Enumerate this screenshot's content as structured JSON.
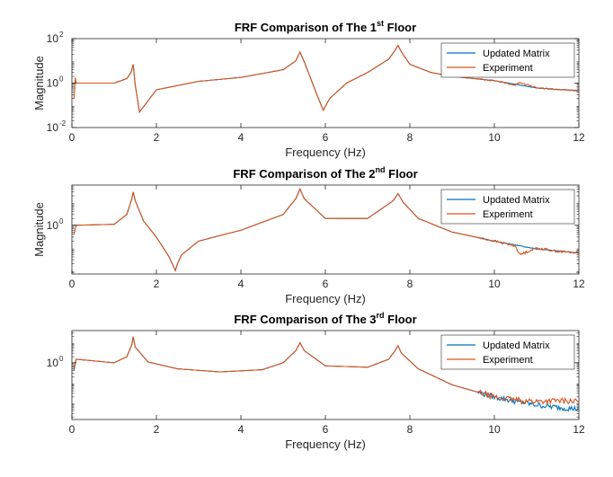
{
  "colors": {
    "updated": "#0072BD",
    "experiment": "#D95319",
    "axis": "#262626"
  },
  "chart_data": [
    {
      "type": "line",
      "title": "FRF Comparison of The 1",
      "title_sup": "st",
      "title_suffix": " Floor",
      "xlabel": "Frequency (Hz)",
      "ylabel": "Magnitude",
      "xlim": [
        0,
        12
      ],
      "ylim": [
        0.01,
        100
      ],
      "yscale": "log",
      "xticks": [
        "0",
        "2",
        "4",
        "6",
        "8",
        "10",
        "12"
      ],
      "yticks": [
        {
          "base": "10",
          "exp": "2",
          "value": 100
        },
        {
          "base": "10",
          "exp": "0",
          "value": 1
        },
        {
          "base": "10",
          "exp": "-2",
          "value": 0.01
        }
      ],
      "legend": {
        "location": "top-right",
        "entries": [
          "Updated Matrix",
          "Experiment"
        ]
      },
      "series": [
        {
          "name": "Updated Matrix",
          "x": [
            0.05,
            1,
            1.3,
            1.4,
            1.45,
            1.5,
            1.6,
            2,
            3,
            4,
            5,
            5.3,
            5.4,
            5.5,
            5.8,
            5.95,
            6.1,
            6.5,
            7,
            7.5,
            7.65,
            7.72,
            7.8,
            8,
            8.5,
            9,
            10,
            11,
            12
          ],
          "y": [
            1,
            1,
            1.6,
            3,
            7,
            0.8,
            0.05,
            0.5,
            1.2,
            1.8,
            4,
            10,
            25,
            9,
            0.3,
            0.06,
            0.2,
            1,
            3,
            12,
            30,
            50,
            25,
            7,
            3,
            2,
            1.3,
            0.6,
            0.45
          ]
        },
        {
          "name": "Experiment",
          "x": [
            0.05,
            0.08,
            0.1,
            1,
            1.3,
            1.4,
            1.45,
            1.5,
            1.6,
            2,
            3,
            4,
            5,
            5.3,
            5.4,
            5.5,
            5.8,
            5.95,
            6.1,
            6.5,
            7,
            7.5,
            7.65,
            7.72,
            7.8,
            8,
            8.5,
            9,
            10,
            10.5,
            10.6,
            11,
            12
          ],
          "y": [
            0.2,
            1.8,
            1,
            1,
            1.6,
            3,
            7,
            0.8,
            0.05,
            0.5,
            1.2,
            1.8,
            4,
            10,
            25,
            9,
            0.3,
            0.06,
            0.2,
            1,
            3,
            12,
            30,
            50,
            25,
            7,
            3,
            2,
            1.3,
            0.8,
            1.1,
            0.6,
            0.45
          ]
        }
      ]
    },
    {
      "type": "line",
      "title": "FRF Comparison of The 2",
      "title_sup": "nd",
      "title_suffix": " Floor",
      "xlabel": "Frequency (Hz)",
      "ylabel": "Magnitude",
      "xlim": [
        0,
        12
      ],
      "ylim": [
        0.007,
        60
      ],
      "yscale": "log",
      "xticks": [
        "0",
        "2",
        "4",
        "6",
        "8",
        "10",
        "12"
      ],
      "yticks": [
        {
          "base": "10",
          "exp": "0",
          "value": 1
        }
      ],
      "legend": {
        "location": "top-right",
        "entries": [
          "Updated Matrix",
          "Experiment"
        ]
      },
      "series": [
        {
          "name": "Updated Matrix",
          "x": [
            0.05,
            1,
            1.3,
            1.42,
            1.45,
            1.5,
            1.7,
            2,
            2.3,
            2.45,
            2.5,
            2.6,
            3,
            4,
            5,
            5.3,
            5.4,
            5.5,
            6,
            7,
            7.6,
            7.72,
            7.85,
            8.2,
            9,
            10,
            11,
            12
          ],
          "y": [
            1,
            1.1,
            3,
            15,
            30,
            12,
            1.5,
            0.3,
            0.04,
            0.01,
            0.02,
            0.05,
            0.2,
            0.6,
            3,
            15,
            40,
            15,
            2,
            2,
            12,
            25,
            10,
            2,
            0.5,
            0.2,
            0.09,
            0.06
          ]
        },
        {
          "name": "Experiment",
          "x": [
            0.05,
            0.1,
            1,
            1.3,
            1.42,
            1.45,
            1.5,
            1.7,
            2,
            2.3,
            2.45,
            2.5,
            2.6,
            3,
            4,
            5,
            5.3,
            5.4,
            5.5,
            6,
            7,
            7.6,
            7.72,
            7.85,
            8.2,
            9,
            10,
            10.5,
            10.6,
            11,
            11.5,
            12
          ],
          "y": [
            0.4,
            1,
            1.1,
            3,
            15,
            30,
            12,
            1.5,
            0.3,
            0.04,
            0.01,
            0.02,
            0.05,
            0.2,
            0.6,
            3,
            15,
            40,
            15,
            2,
            2,
            12,
            25,
            10,
            2,
            0.5,
            0.2,
            0.12,
            0.05,
            0.1,
            0.07,
            0.06
          ]
        }
      ]
    },
    {
      "type": "line",
      "title": "FRF Comparison of The 3",
      "title_sup": "rd",
      "title_suffix": " Floor",
      "xlabel": "Frequency (Hz)",
      "ylabel": "",
      "xlim": [
        0,
        12
      ],
      "ylim": [
        0.0015,
        40
      ],
      "yscale": "log",
      "xticks": [
        "0",
        "2",
        "4",
        "6",
        "8",
        "10",
        "12"
      ],
      "yticks": [
        {
          "base": "10",
          "exp": "0",
          "value": 1
        }
      ],
      "legend": {
        "location": "top-right",
        "entries": [
          "Updated Matrix",
          "Experiment"
        ]
      },
      "series": [
        {
          "name": "Updated Matrix",
          "x": [
            0.05,
            0.1,
            1,
            1.3,
            1.42,
            1.45,
            1.5,
            1.8,
            2.5,
            3.5,
            4.5,
            5,
            5.3,
            5.4,
            5.5,
            6,
            7,
            7.5,
            7.65,
            7.72,
            7.8,
            8.2,
            9,
            10,
            10.5,
            11,
            11.5,
            12
          ],
          "y": [
            0.4,
            1.5,
            1,
            2,
            8,
            20,
            6,
            1.1,
            0.5,
            0.35,
            0.45,
            1,
            4,
            10,
            4,
            0.7,
            0.6,
            1.5,
            4,
            7,
            3,
            0.5,
            0.08,
            0.02,
            0.012,
            0.008,
            0.006,
            0.005
          ]
        },
        {
          "name": "Experiment",
          "x": [
            0.05,
            0.1,
            1,
            1.3,
            1.42,
            1.45,
            1.5,
            1.8,
            2.5,
            3.5,
            4.5,
            5,
            5.3,
            5.4,
            5.5,
            6,
            7,
            7.5,
            7.65,
            7.72,
            7.8,
            8.2,
            9,
            10,
            10.5,
            11,
            11.5,
            12
          ],
          "y": [
            0.5,
            1.5,
            1,
            2,
            8,
            20,
            6,
            1.1,
            0.5,
            0.35,
            0.45,
            1,
            4,
            10,
            4,
            0.7,
            0.6,
            1.5,
            4,
            7,
            3,
            0.5,
            0.08,
            0.02,
            0.014,
            0.012,
            0.013,
            0.012
          ]
        }
      ]
    }
  ]
}
